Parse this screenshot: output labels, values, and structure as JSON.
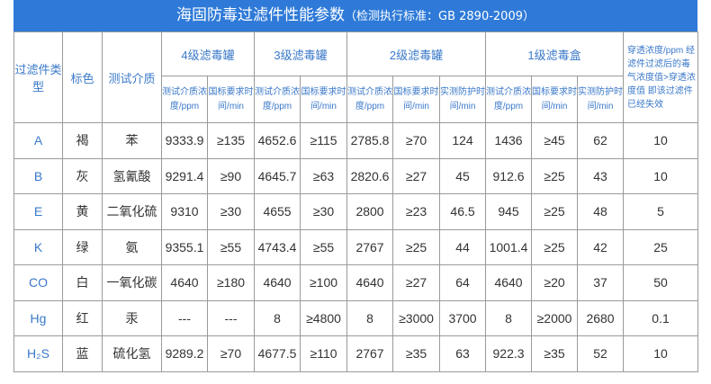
{
  "title": {
    "main": "海固防毒过滤件性能参数",
    "sub": "（检测执行标准：GB 2890-2009）"
  },
  "header": {
    "type": "过滤件类型",
    "color": "标色",
    "medium": "测试介质",
    "groups": [
      "4级滤毒罐",
      "3级滤毒罐",
      "2级滤毒罐",
      "1级滤毒盒"
    ],
    "last": "穿透浓度/ppm 经滤件过滤后的毒气浓度值>穿透浓度值 即该过滤件已经失效",
    "conc": "测试介质浓度/ppm",
    "req": "国标要求时间/min",
    "meas": "实测防护时间/min"
  },
  "rows": [
    [
      "A",
      "褐",
      "苯",
      "9333.9",
      "≥135",
      "4652.6",
      "≥115",
      "2785.8",
      "≥70",
      "124",
      "1436",
      "≥45",
      "62",
      "10"
    ],
    [
      "B",
      "灰",
      "氢氰酸",
      "9291.4",
      "≥90",
      "4645.7",
      "≥63",
      "2820.6",
      "≥27",
      "45",
      "912.6",
      "≥25",
      "43",
      "10"
    ],
    [
      "E",
      "黄",
      "二氧化硫",
      "9310",
      "≥30",
      "4655",
      "≥30",
      "2800",
      "≥23",
      "46.5",
      "945",
      "≥25",
      "48",
      "5"
    ],
    [
      "K",
      "绿",
      "氨",
      "9355.1",
      "≥55",
      "4743.4",
      "≥55",
      "2767",
      "≥25",
      "44",
      "1001.4",
      "≥25",
      "42",
      "25"
    ],
    [
      "CO",
      "白",
      "一氧化碳",
      "4640",
      "≥180",
      "4640",
      "≥100",
      "4640",
      "≥27",
      "64",
      "4640",
      "≥20",
      "37",
      "50"
    ],
    [
      "Hg",
      "红",
      "汞",
      "---",
      "---",
      "8",
      "≥4800",
      "8",
      "≥3000",
      "3700",
      "8",
      "≥2000",
      "2680",
      "0.1"
    ],
    [
      "H₂S",
      "蓝",
      "硫化氢",
      "9289.2",
      "≥70",
      "4677.5",
      "≥110",
      "2767",
      "≥35",
      "63",
      "922.3",
      "≥35",
      "52",
      "10"
    ]
  ],
  "colors": {
    "title_bg": "#2f7ad8",
    "header_text": "#3a78c9"
  }
}
